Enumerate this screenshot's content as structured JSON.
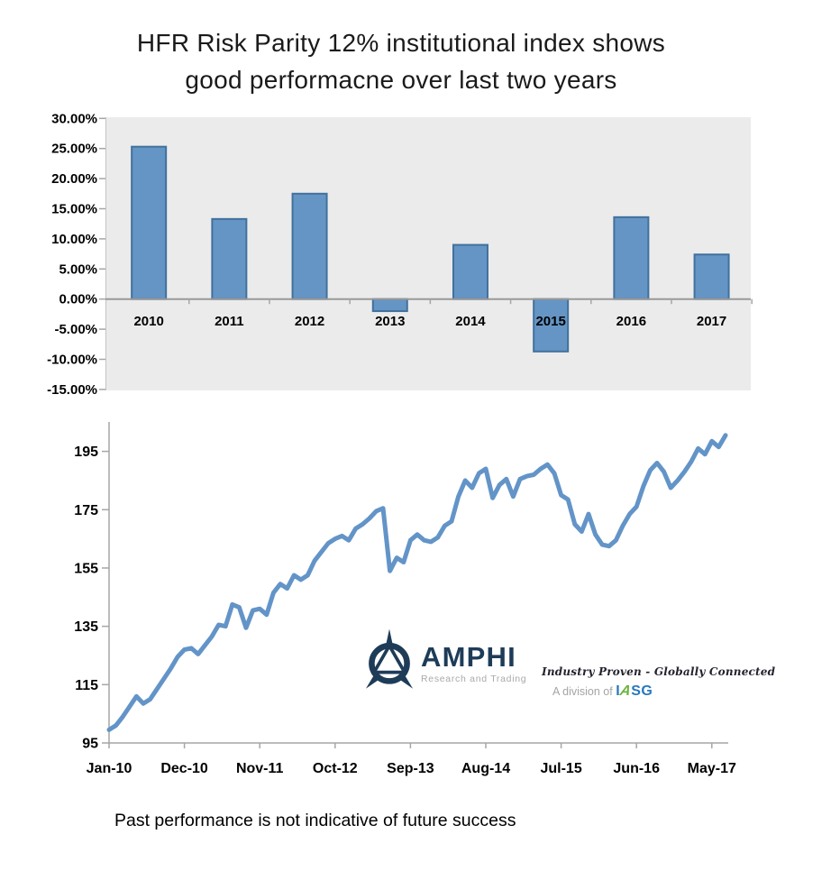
{
  "title": {
    "line1": "HFR Risk Parity 12% institutional index shows",
    "line2": "good performacne over last two years"
  },
  "footer": {
    "disclaimer": "Past performance is not indicative of future success"
  },
  "logo": {
    "name": "AMPHI",
    "tagline": "Research and Trading"
  },
  "partner": {
    "motto": "Industry Proven - Globally Connected",
    "division_prefix": "A division of",
    "brand_i": "I",
    "brand_a": "A",
    "brand_sg": "SG"
  },
  "colors": {
    "bar_fill": "#6595c5",
    "bar_stroke": "#41719c",
    "plot_bg": "#ebebeb",
    "axis_gray": "#a6a6a6",
    "zero_line": "#999999",
    "line_blue": "#6394c8",
    "navy": "#1e3c58",
    "iasg_blue": "#2878be",
    "iasg_green": "#6cb33f"
  },
  "chart_data": [
    {
      "type": "bar",
      "title": "Annual returns",
      "categories": [
        "2010",
        "2011",
        "2012",
        "2013",
        "2014",
        "2015",
        "2016",
        "2017"
      ],
      "values": [
        25.3,
        13.3,
        17.5,
        -2.0,
        9.0,
        -8.7,
        13.6,
        7.4
      ],
      "unit": "%",
      "y_tick_labels": [
        "30.00%",
        "25.00%",
        "20.00%",
        "15.00%",
        "10.00%",
        "5.00%",
        "0.00%",
        "-5.00%",
        "-10.00%",
        "-15.00%"
      ],
      "y_tick_values": [
        30,
        25,
        20,
        15,
        10,
        5,
        0,
        -5,
        -10,
        -15
      ],
      "ylim": [
        -15,
        30
      ],
      "grid": false,
      "legend": "none",
      "plot_bg": "#ebebeb",
      "bar_fill": "#6595c5",
      "bar_stroke": "#41719c"
    },
    {
      "type": "line",
      "title": "Index level, monthly from Jan-2010",
      "x_frequency": "monthly",
      "x_start": "Jan-2010",
      "x_tick_labels": [
        "Jan-10",
        "Dec-10",
        "Nov-11",
        "Oct-12",
        "Sep-13",
        "Aug-14",
        "Jul-15",
        "Jun-16",
        "May-17"
      ],
      "x_tick_indices": [
        0,
        11,
        22,
        33,
        44,
        55,
        66,
        77,
        88
      ],
      "y_tick_labels": [
        "95",
        "115",
        "135",
        "155",
        "175",
        "195"
      ],
      "y_tick_values": [
        95,
        115,
        135,
        155,
        175,
        195
      ],
      "ylim": [
        95,
        205
      ],
      "grid": false,
      "legend": "none",
      "line_color": "#6394c8",
      "values": [
        99.5,
        101,
        104,
        107.5,
        111,
        108.5,
        110,
        113.5,
        117,
        120.5,
        124.5,
        127,
        127.5,
        125.5,
        128.5,
        131.5,
        135.5,
        135,
        142.5,
        141.5,
        134.5,
        140.5,
        141,
        139,
        146.5,
        149.5,
        148,
        152.5,
        151,
        152.5,
        157.5,
        160.5,
        163.5,
        165,
        166,
        164.5,
        168.5,
        170,
        172,
        174.5,
        175.5,
        154,
        158.5,
        157,
        164.5,
        166.5,
        164.5,
        164,
        165.5,
        169.5,
        171,
        179.5,
        185,
        182.5,
        187.5,
        189,
        179,
        183.5,
        185.5,
        179.5,
        185.5,
        186.5,
        187,
        189,
        190.5,
        187.5,
        180,
        178.5,
        170,
        167.5,
        173.5,
        166.5,
        163,
        162.5,
        164.5,
        169.5,
        173.5,
        176,
        183,
        188.5,
        191,
        188,
        182.5,
        185,
        188,
        191.5,
        196,
        194,
        198.5,
        196.5,
        200.5
      ]
    }
  ]
}
